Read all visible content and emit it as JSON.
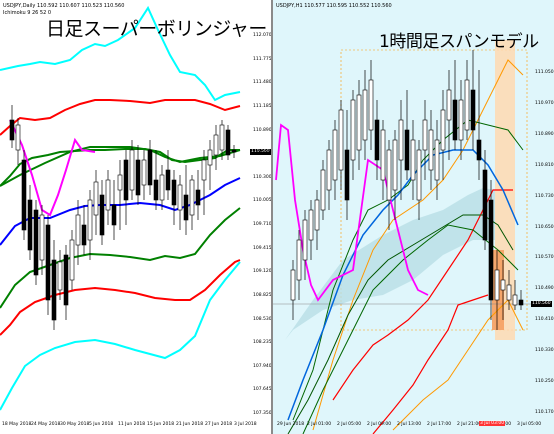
{
  "left_chart": {
    "symbol_line": "USDJPY,Daily  110.592 110.607 110.523 110.560",
    "sub_line": "Ichimoku 9 26 52 0",
    "title": "日足スーパーボリンジャー",
    "price_label": "110.560",
    "y_ticks": [
      "112.070",
      "111.775",
      "111.480",
      "111.185",
      "110.890",
      "110.595",
      "110.300",
      "110.005",
      "109.710",
      "109.415",
      "109.120",
      "108.825",
      "108.530",
      "108.235",
      "107.940",
      "107.645",
      "107.350"
    ],
    "x_ticks": [
      "18 May 2018",
      "24 May 2018",
      "30 May 2018",
      "5 Jun 2018",
      "11 Jun 2018",
      "15 Jun 2018",
      "21 Jun 2018",
      "27 Jun 2018",
      "3 Jul 2018"
    ]
  },
  "right_chart": {
    "symbol_line": "USDJPY,H1  110.577 110.595 110.552 110.560",
    "title": "1時間足スパンモデル",
    "price_label": "110.560",
    "y_ticks": [
      "111.050",
      "110.970",
      "110.890",
      "110.810",
      "110.730",
      "110.650",
      "110.570",
      "110.490",
      "110.410",
      "110.330",
      "110.250",
      "110.170"
    ],
    "x_ticks": [
      "29 Jun 2018",
      "2 Jul 01:00",
      "2 Jul 05:00",
      "2 Jul 09:00",
      "2 Jul 13:00",
      "2 Jul 17:00",
      "2 Jul 21:00",
      "3 Jul 01:00",
      "3 Jul 05:00"
    ],
    "x_highlight": "3 Jul 03:00"
  },
  "colors": {
    "upper_bands": "#00ffff",
    "outer_red": "#ff0000",
    "mid_green": "#008000",
    "blue_line": "#0000ff",
    "lagging": "#ff00ff",
    "orange": "#ff9900",
    "grey_box": "#ffcc99"
  }
}
